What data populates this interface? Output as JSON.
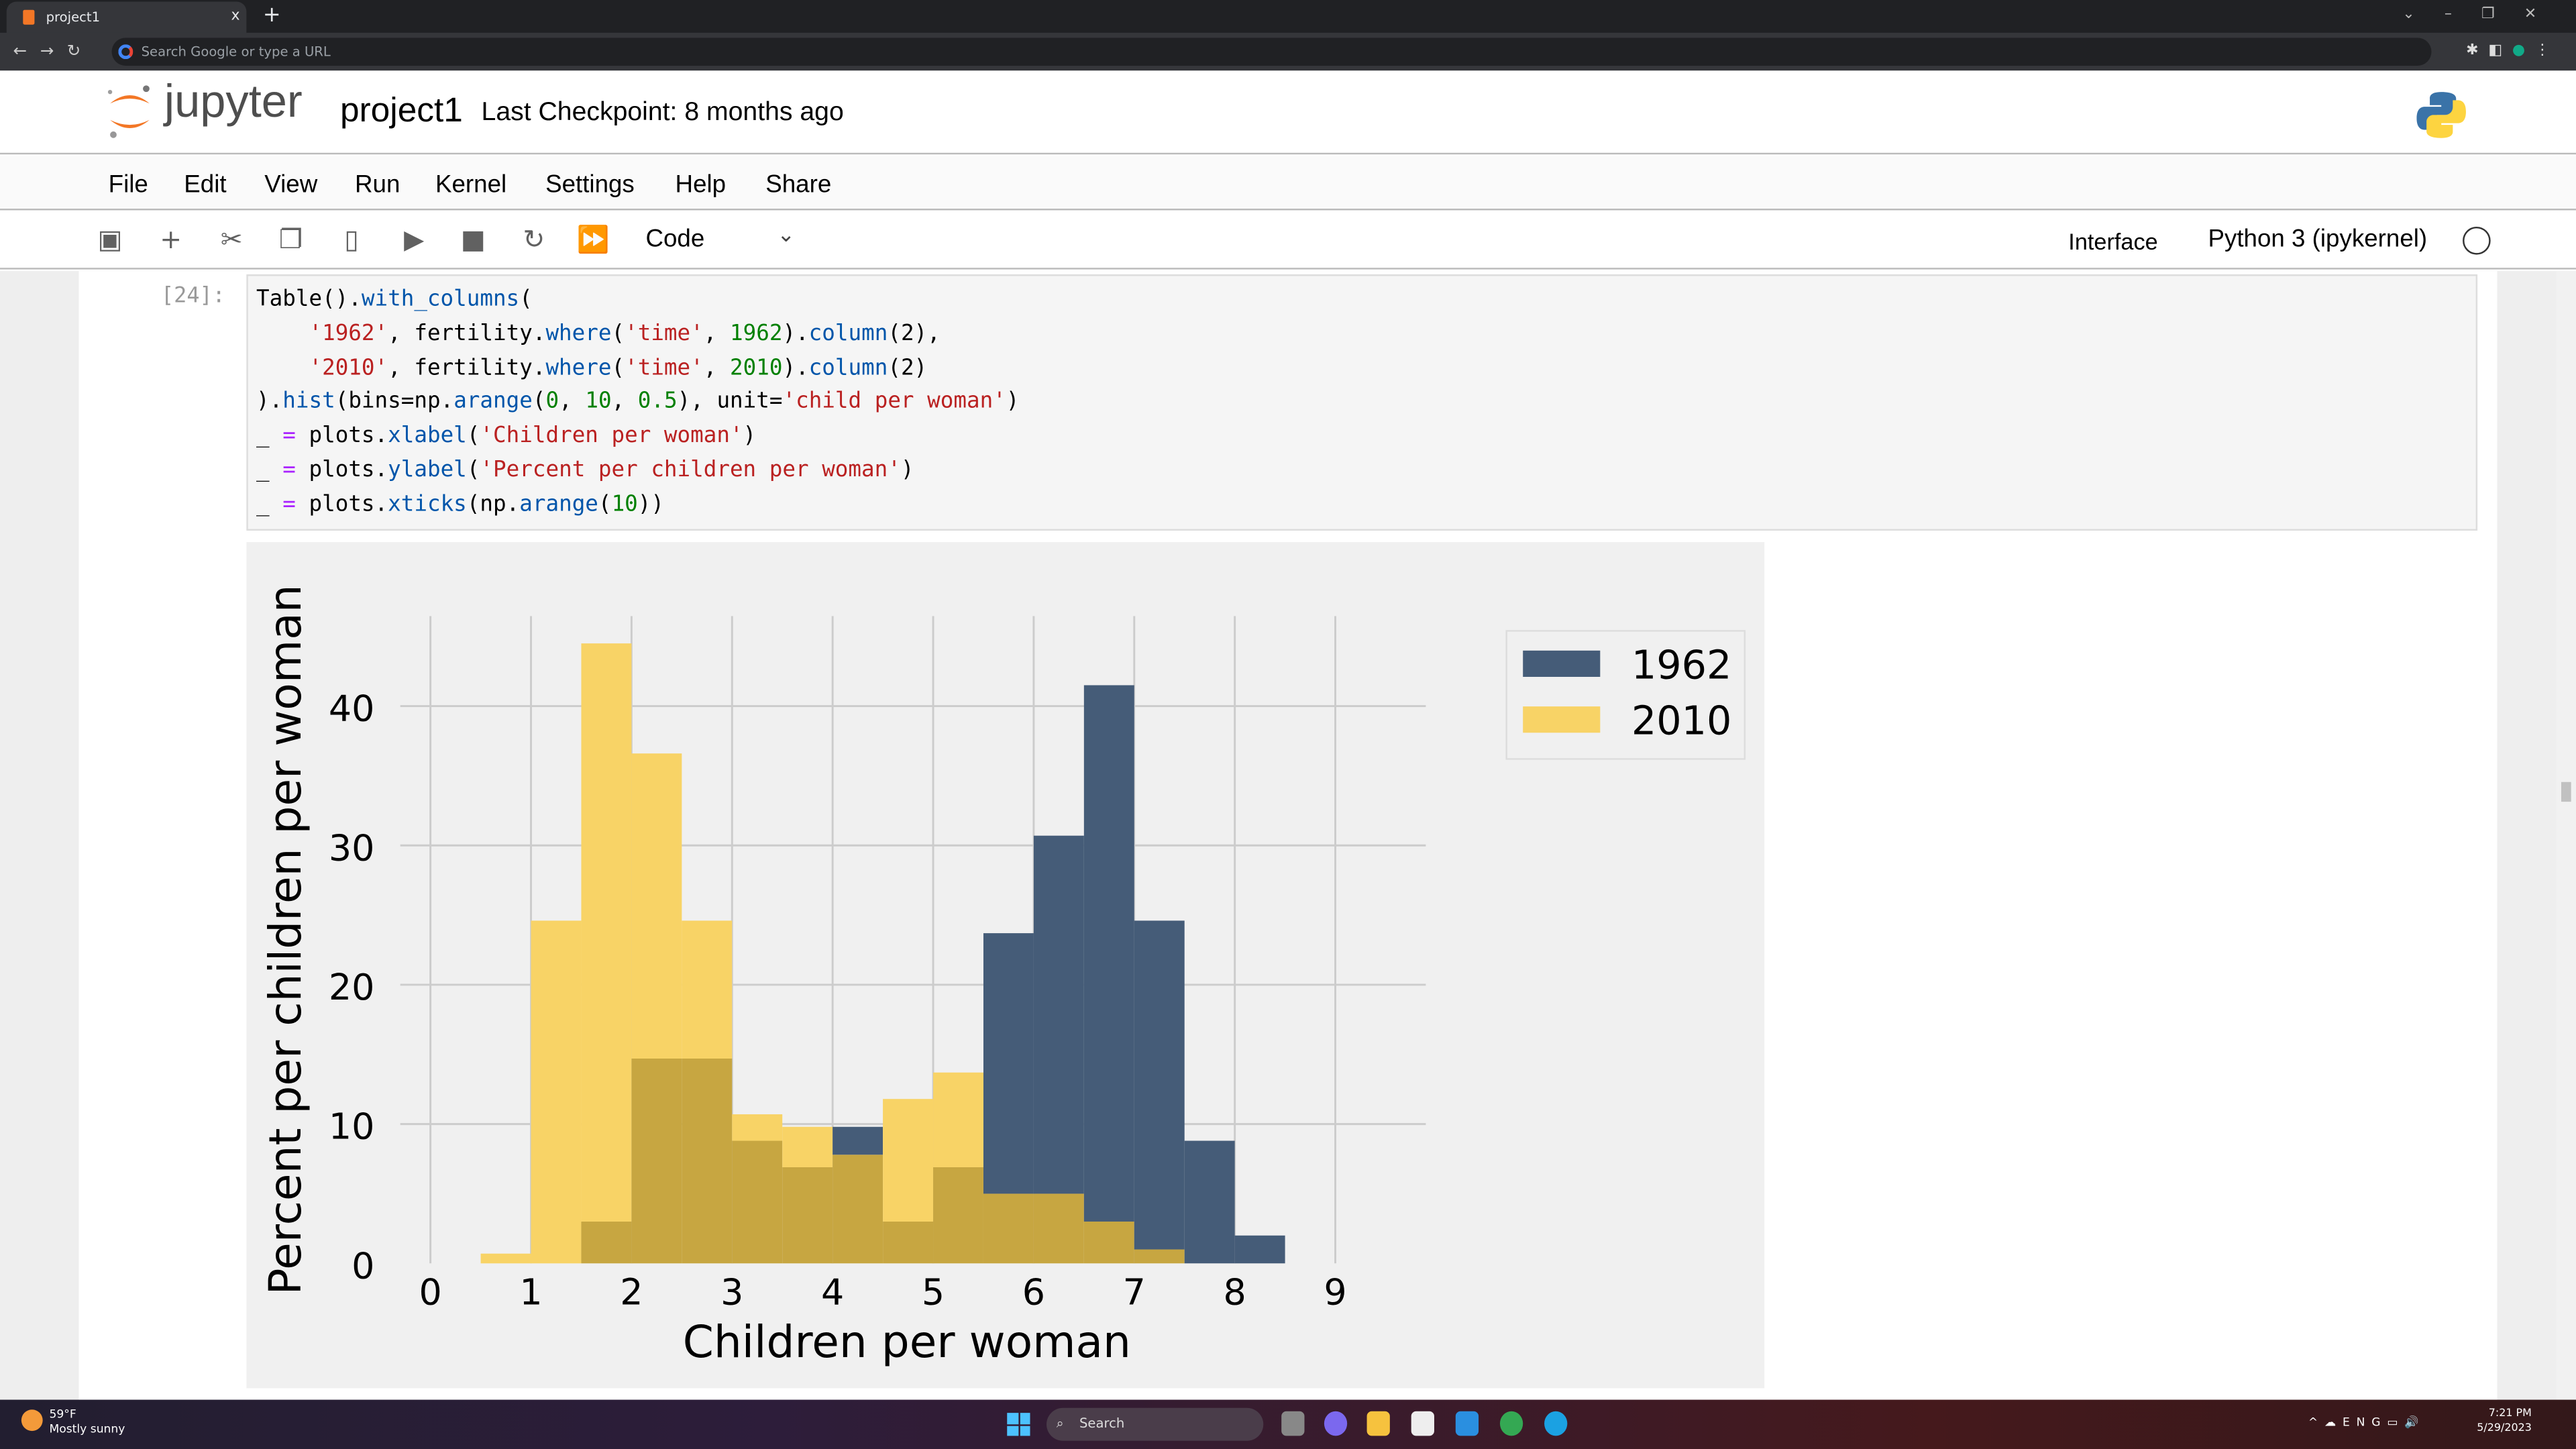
{
  "browser": {
    "tab_title": "project1",
    "new_tab": "+",
    "close_tab": "x",
    "omnibox_placeholder": "Search Google or type a URL"
  },
  "header": {
    "logo_text": "jupyter",
    "notebook_title": "project1",
    "checkpoint": "Last Checkpoint: 8 months ago"
  },
  "menu": [
    "File",
    "Edit",
    "View",
    "Run",
    "Kernel",
    "Settings",
    "Help",
    "Share"
  ],
  "toolbar": {
    "icons": [
      "save-icon",
      "add-cell-icon",
      "cut-icon",
      "copy-icon",
      "paste-icon",
      "run-icon",
      "stop-icon",
      "restart-icon",
      "run-all-icon"
    ],
    "cell_type": "Code",
    "interface": "Interface",
    "kernel": "Python 3 (ipykernel)"
  },
  "cell": {
    "prompt": "[24]:",
    "code_lines": [
      [
        [
          "Table().",
          "var"
        ],
        [
          "with_columns",
          "attr"
        ],
        [
          "(",
          "var"
        ]
      ],
      [
        [
          "    ",
          "var"
        ],
        [
          "'1962'",
          "str"
        ],
        [
          ", fertility.",
          "var"
        ],
        [
          "where",
          "attr"
        ],
        [
          "(",
          "var"
        ],
        [
          "'time'",
          "str"
        ],
        [
          ", ",
          "var"
        ],
        [
          "1962",
          "num"
        ],
        [
          ").",
          "var"
        ],
        [
          "column",
          "attr"
        ],
        [
          "(2),",
          "var"
        ]
      ],
      [
        [
          "    ",
          "var"
        ],
        [
          "'2010'",
          "str"
        ],
        [
          ", fertility.",
          "var"
        ],
        [
          "where",
          "attr"
        ],
        [
          "(",
          "var"
        ],
        [
          "'time'",
          "str"
        ],
        [
          ", ",
          "var"
        ],
        [
          "2010",
          "num"
        ],
        [
          ").",
          "var"
        ],
        [
          "column",
          "attr"
        ],
        [
          "(2)",
          "var"
        ]
      ],
      [
        [
          ").",
          "var"
        ],
        [
          "hist",
          "attr"
        ],
        [
          "(bins=np.",
          "var"
        ],
        [
          "arange",
          "attr"
        ],
        [
          "(",
          "var"
        ],
        [
          "0",
          "num"
        ],
        [
          ", ",
          "var"
        ],
        [
          "10",
          "num"
        ],
        [
          ", ",
          "var"
        ],
        [
          "0.5",
          "num"
        ],
        [
          "), unit=",
          "var"
        ],
        [
          "'child per woman'",
          "str"
        ],
        [
          ")",
          "var"
        ]
      ],
      [
        [
          "_ ",
          "var"
        ],
        [
          "=",
          "op"
        ],
        [
          " plots.",
          "var"
        ],
        [
          "xlabel",
          "attr"
        ],
        [
          "(",
          "var"
        ],
        [
          "'Children per woman'",
          "str"
        ],
        [
          ")",
          "var"
        ]
      ],
      [
        [
          "_ ",
          "var"
        ],
        [
          "=",
          "op"
        ],
        [
          " plots.",
          "var"
        ],
        [
          "ylabel",
          "attr"
        ],
        [
          "(",
          "var"
        ],
        [
          "'Percent per children per woman'",
          "str"
        ],
        [
          ")",
          "var"
        ]
      ],
      [
        [
          "_ ",
          "var"
        ],
        [
          "=",
          "op"
        ],
        [
          " plots.",
          "var"
        ],
        [
          "xticks",
          "attr"
        ],
        [
          "(np.",
          "var"
        ],
        [
          "arange",
          "attr"
        ],
        [
          "(",
          "var"
        ],
        [
          "10",
          "num"
        ],
        [
          "))",
          "var"
        ]
      ]
    ]
  },
  "chart_data": {
    "type": "bar",
    "subtype": "overlaid histogram",
    "bin_edges": [
      0,
      0.5,
      1,
      1.5,
      2,
      2.5,
      3,
      3.5,
      4,
      4.5,
      5,
      5.5,
      6,
      6.5,
      7,
      7.5,
      8,
      8.5,
      9,
      9.5,
      10
    ],
    "series": [
      {
        "name": "1962",
        "color": "#455c78",
        "values": [
          0,
          0,
          0,
          3,
          14.7,
          14.7,
          8.8,
          6.9,
          9.8,
          3,
          6.9,
          23.7,
          30.7,
          41.5,
          24.6,
          8.8,
          2,
          0,
          0,
          0
        ]
      },
      {
        "name": "2010",
        "color": "#f8d366",
        "values": [
          0,
          0.7,
          24.6,
          44.5,
          36.6,
          24.6,
          10.7,
          9.8,
          7.8,
          11.8,
          13.7,
          5,
          5,
          3,
          1,
          0,
          0,
          0,
          0,
          0
        ]
      }
    ],
    "overlap_color": "#c7a641",
    "xlabel": "Children per woman",
    "ylabel": "Percent per children per woman",
    "xticks": [
      0,
      1,
      2,
      3,
      4,
      5,
      6,
      7,
      8,
      9
    ],
    "yticks": [
      0,
      10,
      20,
      30,
      40
    ],
    "xlim": [
      -0.3,
      9.9
    ],
    "ylim": [
      0,
      46
    ],
    "grid": true,
    "legend_placement": "upper-right outside"
  },
  "taskbar": {
    "temp": "59°F",
    "weather": "Mostly sunny",
    "search": "Search",
    "lang": "ENG",
    "time": "7:21 PM",
    "date": "5/29/2023"
  }
}
